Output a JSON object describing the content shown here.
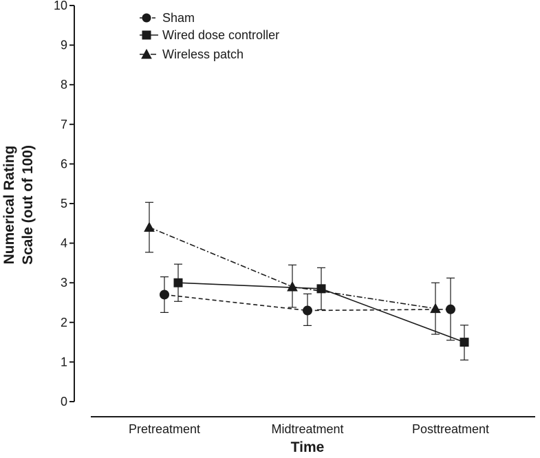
{
  "chart_data": {
    "type": "line",
    "title": "",
    "xlabel": "Time",
    "ylabel_lines": [
      "Numerical Rating",
      "Scale (out of 100)"
    ],
    "ylim": [
      0,
      10
    ],
    "yticks": [
      0,
      1,
      2,
      3,
      4,
      5,
      6,
      7,
      8,
      9,
      10
    ],
    "categories": [
      "Pretreatment",
      "Midtreatment",
      "Posttreatment"
    ],
    "legend_position": "top-left",
    "grid": false,
    "series": [
      {
        "name": "Sham",
        "marker": "circle",
        "line_style": "dashed",
        "values": [
          2.7,
          2.3,
          2.33
        ],
        "error_low": [
          2.25,
          1.92,
          1.55
        ],
        "error_high": [
          3.15,
          2.72,
          3.12
        ]
      },
      {
        "name": "Wired dose controller",
        "marker": "square",
        "line_style": "solid",
        "values": [
          3.0,
          2.85,
          1.5
        ],
        "error_low": [
          2.53,
          2.32,
          1.05
        ],
        "error_high": [
          3.47,
          3.38,
          1.93
        ]
      },
      {
        "name": "Wireless patch",
        "marker": "triangle",
        "line_style": "dashdot",
        "values": [
          4.4,
          2.9,
          2.35
        ],
        "error_low": [
          3.77,
          2.38,
          1.7
        ],
        "error_high": [
          5.03,
          3.45,
          3.0
        ]
      }
    ]
  }
}
